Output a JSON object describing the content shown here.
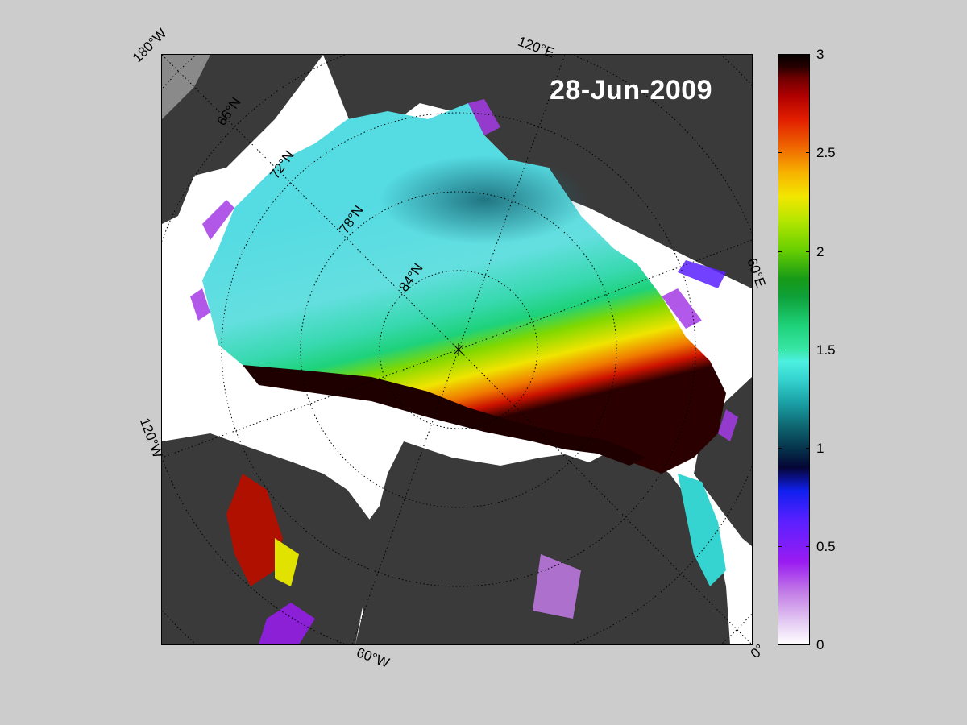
{
  "map": {
    "title": "28-Jun-2009",
    "projection": "north-polar-stereographic",
    "center": "north-pole",
    "longitude_labels": [
      "180°W",
      "120°E",
      "60°E",
      "0°",
      "60°W",
      "120°W"
    ],
    "latitude_labels": [
      "66°N",
      "72°N",
      "78°N",
      "84°N"
    ],
    "colors": {
      "land": "#3a3a3a",
      "ocean_open": "#ffffff",
      "ice_free_outside": "#cccccc",
      "grid": "#000000"
    }
  },
  "colorbar": {
    "min": 0,
    "max": 3,
    "tick_labels": [
      "3",
      "2.5",
      "2",
      "1.5",
      "1",
      "0.5",
      "0"
    ],
    "colormap": [
      "#ffffff",
      "#c27ae6",
      "#1020f0",
      "#050535",
      "#1aa0a6",
      "#4cf0e0",
      "#1ed27a",
      "#179a18",
      "#f3e600",
      "#f06c00",
      "#b00000",
      "#050000"
    ]
  }
}
